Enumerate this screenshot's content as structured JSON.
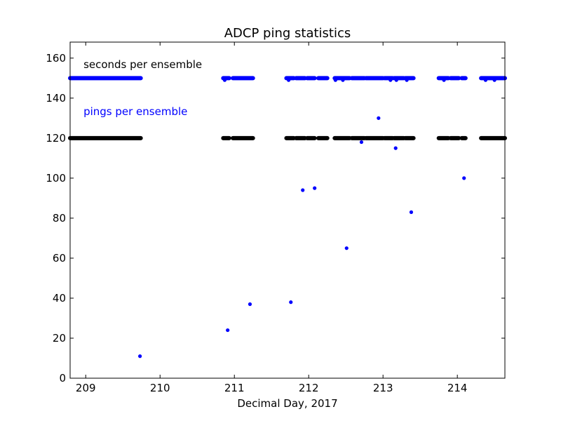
{
  "chart_data": {
    "type": "scatter",
    "title": "ADCP  ping statistics",
    "xlabel": "Decimal Day, 2017",
    "ylabel": "",
    "xlim": [
      208.79,
      214.64
    ],
    "ylim": [
      0,
      168
    ],
    "xticks": [
      209,
      210,
      211,
      212,
      213,
      214
    ],
    "xtick_labels": [
      "209",
      "210",
      "211",
      "212",
      "213",
      "214"
    ],
    "yticks": [
      0,
      20,
      40,
      60,
      80,
      100,
      120,
      140,
      160
    ],
    "ytick_labels": [
      "0",
      "20",
      "40",
      "60",
      "80",
      "100",
      "120",
      "140",
      "160"
    ],
    "grid": false,
    "annotations": [
      {
        "text": "seconds per ensemble",
        "x": 208.97,
        "y": 155,
        "color": "#000000"
      },
      {
        "text": "pings per ensemble",
        "x": 208.97,
        "y": 131.5,
        "color": "#0000ff"
      }
    ],
    "series": [
      {
        "name": "seconds per ensemble",
        "color": "#000000",
        "value": 120,
        "segments": [
          [
            208.79,
            209.74
          ],
          [
            210.85,
            210.93
          ],
          [
            210.98,
            211.25
          ],
          [
            211.7,
            211.8
          ],
          [
            211.83,
            211.95
          ],
          [
            211.98,
            212.08
          ],
          [
            212.13,
            212.25
          ],
          [
            212.35,
            212.55
          ],
          [
            212.58,
            212.75
          ],
          [
            212.77,
            213.0
          ],
          [
            213.02,
            213.13
          ],
          [
            213.15,
            213.28
          ],
          [
            213.3,
            213.41
          ],
          [
            213.75,
            213.88
          ],
          [
            213.91,
            214.02
          ],
          [
            214.06,
            214.11
          ],
          [
            214.32,
            214.64
          ]
        ],
        "outliers": []
      },
      {
        "name": "pings per ensemble",
        "color": "#0000ff",
        "value": 150,
        "segments": [
          [
            208.79,
            209.74
          ],
          [
            210.85,
            210.93
          ],
          [
            210.98,
            211.25
          ],
          [
            211.7,
            211.8
          ],
          [
            211.83,
            211.95
          ],
          [
            211.98,
            212.08
          ],
          [
            212.13,
            212.25
          ],
          [
            212.35,
            212.55
          ],
          [
            212.58,
            212.75
          ],
          [
            212.77,
            213.0
          ],
          [
            213.02,
            213.13
          ],
          [
            213.15,
            213.28
          ],
          [
            213.3,
            213.41
          ],
          [
            213.75,
            213.88
          ],
          [
            213.91,
            214.02
          ],
          [
            214.06,
            214.11
          ],
          [
            214.32,
            214.64
          ]
        ],
        "outliers": [
          {
            "x": 209.73,
            "y": 11
          },
          {
            "x": 210.91,
            "y": 24
          },
          {
            "x": 211.21,
            "y": 37
          },
          {
            "x": 211.76,
            "y": 38
          },
          {
            "x": 211.92,
            "y": 94
          },
          {
            "x": 212.08,
            "y": 95
          },
          {
            "x": 212.51,
            "y": 65
          },
          {
            "x": 212.71,
            "y": 118
          },
          {
            "x": 212.94,
            "y": 130
          },
          {
            "x": 213.17,
            "y": 115
          },
          {
            "x": 213.38,
            "y": 83
          },
          {
            "x": 214.09,
            "y": 100
          },
          {
            "x": 210.87,
            "y": 149
          },
          {
            "x": 211.73,
            "y": 149
          },
          {
            "x": 212.36,
            "y": 149
          },
          {
            "x": 212.46,
            "y": 149
          },
          {
            "x": 213.1,
            "y": 149
          },
          {
            "x": 213.18,
            "y": 149
          },
          {
            "x": 213.32,
            "y": 149
          },
          {
            "x": 213.82,
            "y": 149
          },
          {
            "x": 214.38,
            "y": 149
          },
          {
            "x": 214.5,
            "y": 149
          }
        ]
      }
    ]
  }
}
